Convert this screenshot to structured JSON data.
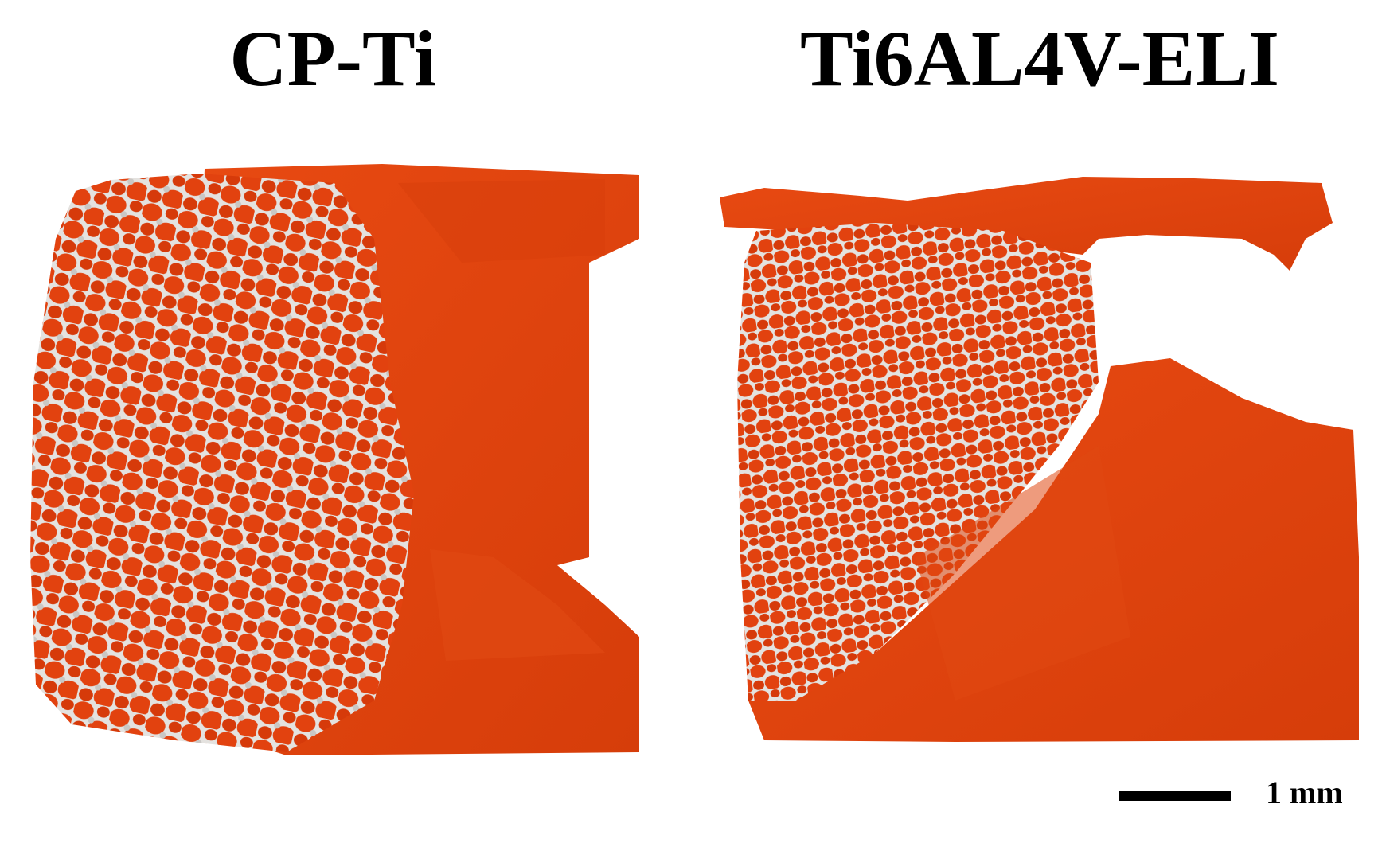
{
  "panels": [
    {
      "title": "CP-Ti"
    },
    {
      "title": "Ti6AL4V-ELI"
    }
  ],
  "scale_bar": {
    "label": "1 mm"
  }
}
